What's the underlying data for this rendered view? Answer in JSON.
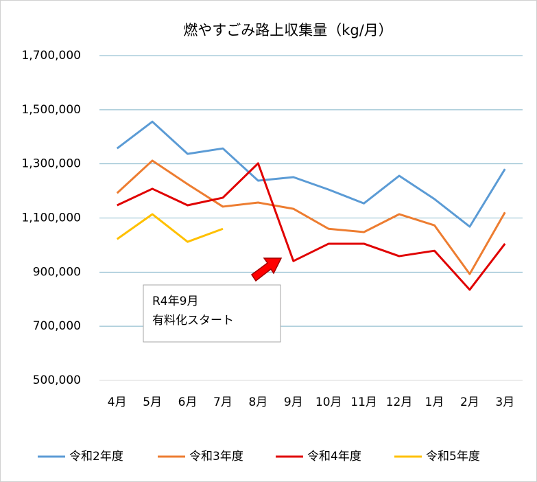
{
  "chart_data": {
    "type": "line",
    "title": "燃やすごみ路上収集量（kg/月）",
    "categories": [
      "4月",
      "5月",
      "6月",
      "7月",
      "8月",
      "9月",
      "10月",
      "11月",
      "12月",
      "1月",
      "2月",
      "3月"
    ],
    "series": [
      {
        "name": "令和2年度",
        "color": "#5b9bd5",
        "values": [
          1357000,
          1456000,
          1337000,
          1357000,
          1238000,
          1251000,
          1205000,
          1154000,
          1256000,
          1170000,
          1068000,
          1281000
        ]
      },
      {
        "name": "令和3年度",
        "color": "#ed7d31",
        "values": [
          1192000,
          1312000,
          1225000,
          1142000,
          1157000,
          1134000,
          1060000,
          1048000,
          1114000,
          1073000,
          893000,
          1121000
        ]
      },
      {
        "name": "令和4年度",
        "color": "#e00000",
        "values": [
          1147000,
          1208000,
          1147000,
          1175000,
          1302000,
          941000,
          1005000,
          1005000,
          959000,
          979000,
          835000,
          1005000
        ]
      },
      {
        "name": "令和5年度",
        "color": "#ffc000",
        "values": [
          1022000,
          1114000,
          1012000,
          1060000,
          null,
          null,
          null,
          null,
          null,
          null,
          null,
          null
        ]
      }
    ],
    "ylim": [
      500000,
      1700000
    ],
    "yticks": [
      {
        "value": 500000,
        "label": "500,000"
      },
      {
        "value": 700000,
        "label": "700,000"
      },
      {
        "value": 900000,
        "label": "900,000"
      },
      {
        "value": 1100000,
        "label": "1,100,000"
      },
      {
        "value": 1300000,
        "label": "1,300,000"
      },
      {
        "value": 1500000,
        "label": "1,500,000"
      },
      {
        "value": 1700000,
        "label": "1,700,000"
      }
    ],
    "grid": true,
    "legend": "bottom",
    "annotation": [
      "R4年9月",
      "有料化スタート"
    ]
  }
}
